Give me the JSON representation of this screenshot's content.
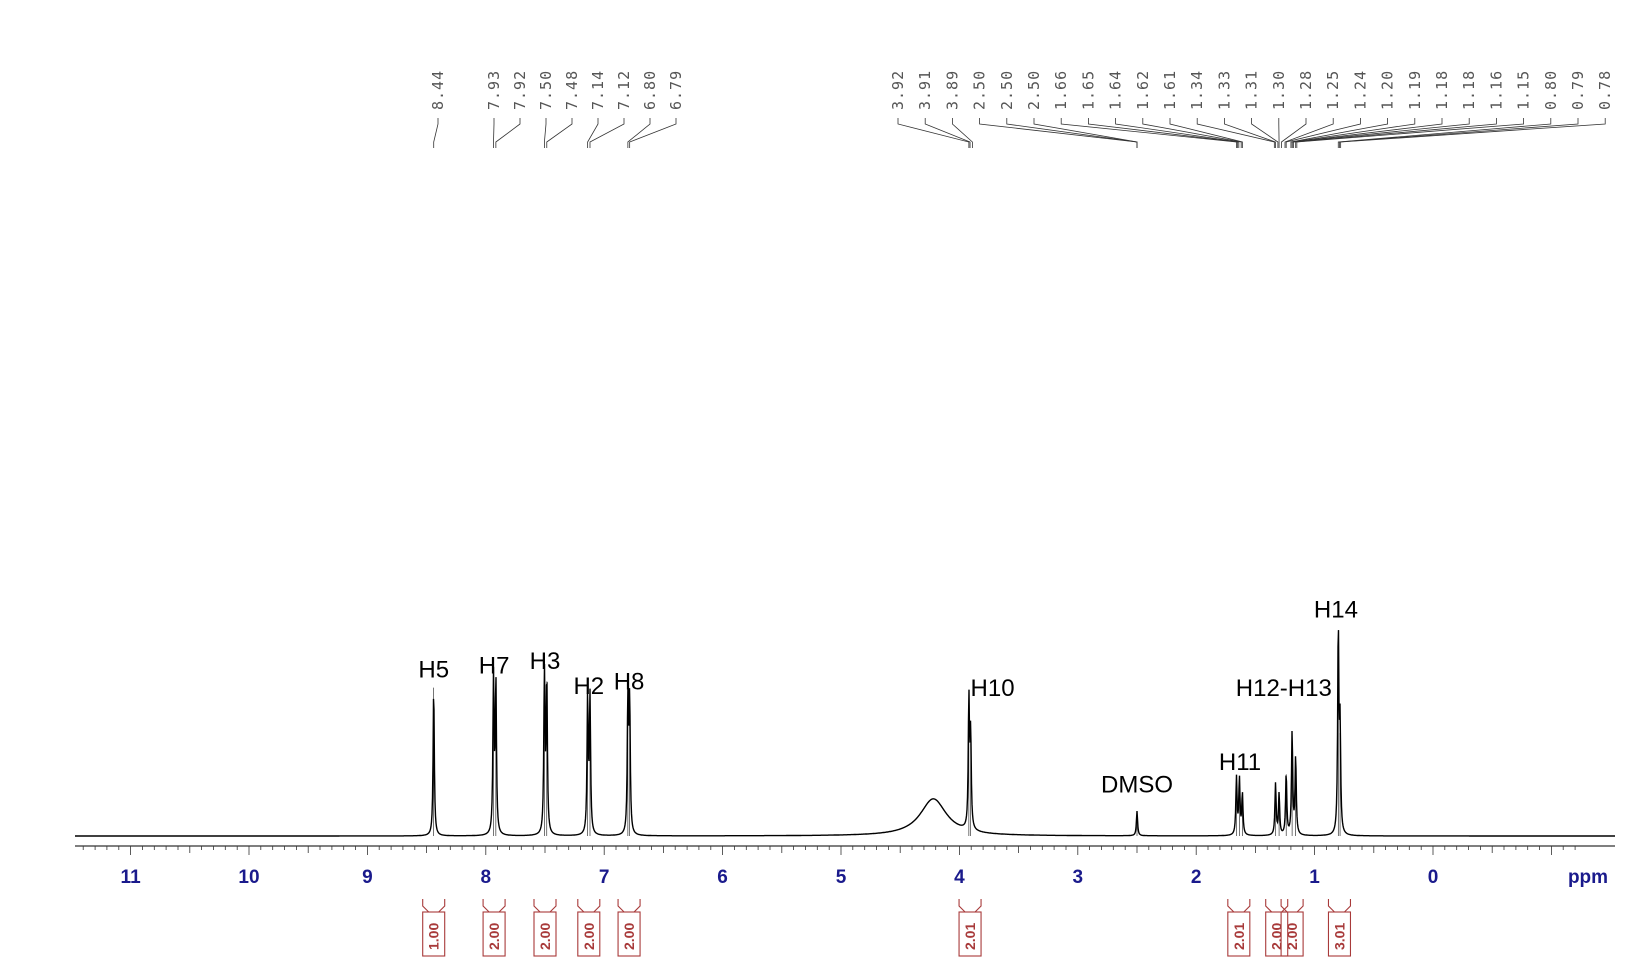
{
  "chart_data": {
    "type": "line",
    "x_unit_label": "ppm",
    "xlim": [
      11.5,
      -1.5
    ],
    "x_reversed": true,
    "x_ticks": [
      11,
      10,
      9,
      8,
      7,
      6,
      5,
      4,
      3,
      2,
      1,
      0
    ],
    "grid": false,
    "peak_labels": [
      "8.44",
      "7.93",
      "7.92",
      "7.50",
      "7.48",
      "7.14",
      "7.12",
      "6.80",
      "6.79",
      "3.92",
      "3.91",
      "3.89",
      "2.50",
      "2.50",
      "2.50",
      "1.66",
      "1.65",
      "1.64",
      "1.62",
      "1.61",
      "1.34",
      "1.33",
      "1.31",
      "1.30",
      "1.28",
      "1.25",
      "1.24",
      "1.20",
      "1.19",
      "1.18",
      "1.18",
      "1.16",
      "1.15",
      "0.80",
      "0.79",
      "0.78"
    ],
    "peaks": [
      {
        "ppm": 8.44,
        "height": 0.72
      },
      {
        "ppm": 7.935,
        "height": 0.76
      },
      {
        "ppm": 7.915,
        "height": 0.74
      },
      {
        "ppm": 7.505,
        "height": 0.78
      },
      {
        "ppm": 7.485,
        "height": 0.75
      },
      {
        "ppm": 7.14,
        "height": 0.66
      },
      {
        "ppm": 7.12,
        "height": 0.66
      },
      {
        "ppm": 6.8,
        "height": 0.66
      },
      {
        "ppm": 6.785,
        "height": 0.64
      },
      {
        "ppm": 3.92,
        "height": 0.63
      },
      {
        "ppm": 3.905,
        "height": 0.45
      },
      {
        "ppm": 2.5,
        "height": 0.12
      },
      {
        "ppm": 1.66,
        "height": 0.28
      },
      {
        "ppm": 1.635,
        "height": 0.27
      },
      {
        "ppm": 1.61,
        "height": 0.2
      },
      {
        "ppm": 1.33,
        "height": 0.25
      },
      {
        "ppm": 1.3,
        "height": 0.2
      },
      {
        "ppm": 1.24,
        "height": 0.3
      },
      {
        "ppm": 1.19,
        "height": 0.5
      },
      {
        "ppm": 1.16,
        "height": 0.38
      },
      {
        "ppm": 0.8,
        "height": 1.0
      },
      {
        "ppm": 0.785,
        "height": 0.5
      }
    ],
    "broad_peaks": [
      {
        "ppm": 4.22,
        "height": 0.18,
        "width": 0.4
      }
    ],
    "assignments": [
      {
        "label": "H5",
        "ppm": 8.44,
        "level": 0.77
      },
      {
        "label": "H7",
        "ppm": 7.93,
        "level": 0.79
      },
      {
        "label": "H3",
        "ppm": 7.5,
        "level": 0.81
      },
      {
        "label": "H2",
        "ppm": 7.13,
        "level": 0.69
      },
      {
        "label": "H8",
        "ppm": 6.79,
        "level": 0.71
      },
      {
        "label": "H10",
        "ppm": 3.72,
        "level": 0.68
      },
      {
        "label": "DMSO",
        "ppm": 2.5,
        "level": 0.21
      },
      {
        "label": "H11",
        "ppm": 1.63,
        "level": 0.32
      },
      {
        "label": "H12-H13",
        "ppm": 1.26,
        "level": 0.68
      },
      {
        "label": "H14",
        "ppm": 0.82,
        "level": 1.06
      }
    ],
    "integrals": [
      {
        "value": "1.00",
        "ppm": 8.44
      },
      {
        "value": "2.00",
        "ppm": 7.93
      },
      {
        "value": "2.00",
        "ppm": 7.5
      },
      {
        "value": "2.00",
        "ppm": 7.13
      },
      {
        "value": "2.00",
        "ppm": 6.79
      },
      {
        "value": "2.01",
        "ppm": 3.91
      },
      {
        "value": "2.01",
        "ppm": 1.64
      },
      {
        "value": "2.00",
        "ppm": 1.32
      },
      {
        "value": "2.00",
        "ppm": 1.19
      },
      {
        "value": "3.01",
        "ppm": 0.79
      }
    ]
  },
  "colors": {
    "spectrum": "#000000",
    "axis": "#333333",
    "tick_label": "#1a1a8c",
    "integral": "#a83a3a",
    "peak_label": "#555555"
  }
}
